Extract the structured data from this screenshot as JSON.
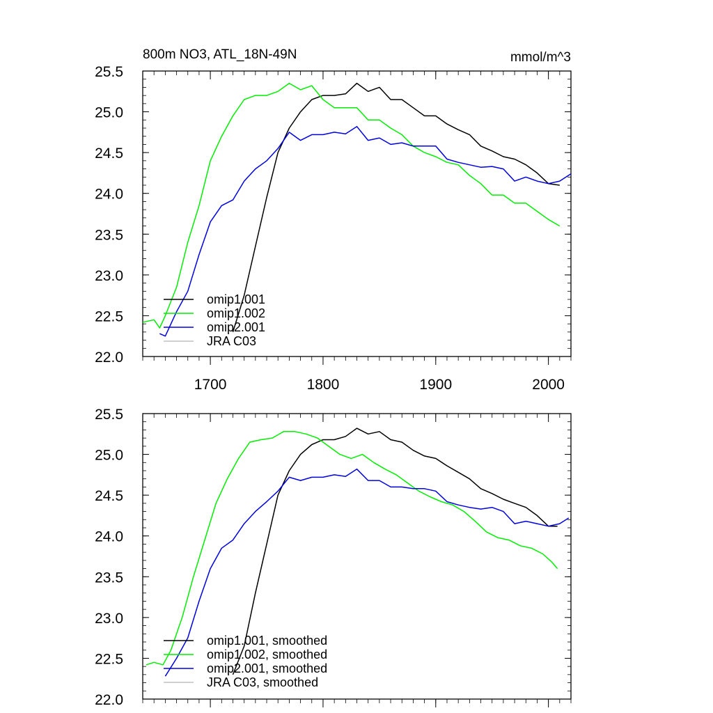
{
  "chart_data": [
    {
      "type": "line",
      "title": "800m NO3, ATL_18N-49N",
      "units_label": "mmol/m^3",
      "xlabel": "",
      "ylabel": "",
      "xlim": [
        1640,
        2020
      ],
      "ylim": [
        22.0,
        25.5
      ],
      "x_ticks": [
        1700,
        1800,
        1900,
        2000
      ],
      "x_tick_labels": [
        "1700",
        "1800",
        "1900",
        "2000"
      ],
      "y_ticks": [
        22.0,
        22.5,
        23.0,
        23.5,
        24.0,
        24.5,
        25.0,
        25.5
      ],
      "y_tick_labels": [
        "22.0",
        "22.5",
        "23.0",
        "23.5",
        "24.0",
        "24.5",
        "25.0",
        "25.5"
      ],
      "grid": false,
      "legend_position": "bottom-left",
      "series": [
        {
          "name": "omip1.001",
          "color": "#000000",
          "points": [
            [
              1720,
              22.3
            ],
            [
              1730,
              22.75
            ],
            [
              1740,
              23.35
            ],
            [
              1750,
              23.95
            ],
            [
              1760,
              24.5
            ],
            [
              1770,
              24.8
            ],
            [
              1780,
              25.0
            ],
            [
              1790,
              25.15
            ],
            [
              1800,
              25.2
            ],
            [
              1810,
              25.2
            ],
            [
              1820,
              25.22
            ],
            [
              1830,
              25.35
            ],
            [
              1840,
              25.25
            ],
            [
              1850,
              25.3
            ],
            [
              1860,
              25.15
            ],
            [
              1870,
              25.15
            ],
            [
              1880,
              25.05
            ],
            [
              1890,
              24.95
            ],
            [
              1900,
              24.95
            ],
            [
              1910,
              24.85
            ],
            [
              1920,
              24.78
            ],
            [
              1930,
              24.72
            ],
            [
              1940,
              24.58
            ],
            [
              1950,
              24.52
            ],
            [
              1960,
              24.45
            ],
            [
              1970,
              24.42
            ],
            [
              1980,
              24.35
            ],
            [
              1990,
              24.25
            ],
            [
              2000,
              24.12
            ],
            [
              2010,
              24.1
            ]
          ]
        },
        {
          "name": "omip1.002",
          "color": "#00ee00",
          "points": [
            [
              1640,
              22.42
            ],
            [
              1650,
              22.45
            ],
            [
              1655,
              22.35
            ],
            [
              1660,
              22.5
            ],
            [
              1670,
              22.85
            ],
            [
              1680,
              23.4
            ],
            [
              1690,
              23.85
            ],
            [
              1700,
              24.4
            ],
            [
              1710,
              24.7
            ],
            [
              1720,
              24.95
            ],
            [
              1730,
              25.15
            ],
            [
              1740,
              25.2
            ],
            [
              1750,
              25.2
            ],
            [
              1760,
              25.25
            ],
            [
              1770,
              25.35
            ],
            [
              1780,
              25.27
            ],
            [
              1790,
              25.32
            ],
            [
              1800,
              25.15
            ],
            [
              1810,
              25.05
            ],
            [
              1820,
              25.05
            ],
            [
              1830,
              25.05
            ],
            [
              1840,
              24.9
            ],
            [
              1850,
              24.9
            ],
            [
              1860,
              24.8
            ],
            [
              1870,
              24.72
            ],
            [
              1880,
              24.58
            ],
            [
              1890,
              24.5
            ],
            [
              1900,
              24.45
            ],
            [
              1910,
              24.38
            ],
            [
              1920,
              24.35
            ],
            [
              1930,
              24.22
            ],
            [
              1940,
              24.12
            ],
            [
              1950,
              23.98
            ],
            [
              1960,
              23.98
            ],
            [
              1970,
              23.88
            ],
            [
              1980,
              23.88
            ],
            [
              1990,
              23.78
            ],
            [
              2000,
              23.68
            ],
            [
              2010,
              23.6
            ]
          ]
        },
        {
          "name": "omip2.001",
          "color": "#0000dd",
          "points": [
            [
              1655,
              22.28
            ],
            [
              1660,
              22.25
            ],
            [
              1670,
              22.55
            ],
            [
              1680,
              22.8
            ],
            [
              1690,
              23.25
            ],
            [
              1700,
              23.65
            ],
            [
              1710,
              23.85
            ],
            [
              1720,
              23.92
            ],
            [
              1730,
              24.15
            ],
            [
              1740,
              24.3
            ],
            [
              1750,
              24.4
            ],
            [
              1760,
              24.55
            ],
            [
              1770,
              24.75
            ],
            [
              1780,
              24.65
            ],
            [
              1790,
              24.72
            ],
            [
              1800,
              24.72
            ],
            [
              1810,
              24.75
            ],
            [
              1820,
              24.73
            ],
            [
              1830,
              24.82
            ],
            [
              1840,
              24.65
            ],
            [
              1850,
              24.68
            ],
            [
              1860,
              24.6
            ],
            [
              1870,
              24.62
            ],
            [
              1880,
              24.58
            ],
            [
              1890,
              24.58
            ],
            [
              1900,
              24.58
            ],
            [
              1910,
              24.42
            ],
            [
              1920,
              24.38
            ],
            [
              1930,
              24.35
            ],
            [
              1940,
              24.32
            ],
            [
              1950,
              24.33
            ],
            [
              1960,
              24.3
            ],
            [
              1970,
              24.15
            ],
            [
              1980,
              24.2
            ],
            [
              1990,
              24.15
            ],
            [
              2000,
              24.12
            ],
            [
              2010,
              24.15
            ],
            [
              2020,
              24.24
            ]
          ]
        },
        {
          "name": "JRA C03",
          "color": "#c0c0c0",
          "points": []
        }
      ]
    },
    {
      "type": "line",
      "title": "",
      "xlabel": "",
      "ylabel": "",
      "xlim": [
        1640,
        2020
      ],
      "ylim": [
        22.0,
        25.5
      ],
      "x_ticks": [
        1700,
        1800,
        1900,
        2000
      ],
      "y_ticks": [
        22.0,
        22.5,
        23.0,
        23.5,
        24.0,
        24.5,
        25.0,
        25.5
      ],
      "y_tick_labels": [
        "22.0",
        "22.5",
        "23.0",
        "23.5",
        "24.0",
        "24.5",
        "25.0",
        "25.5"
      ],
      "grid": false,
      "legend_position": "bottom-left",
      "series": [
        {
          "name": "omip1.001, smoothed",
          "color": "#000000",
          "points": [
            [
              1720,
              22.3
            ],
            [
              1730,
              22.65
            ],
            [
              1740,
              23.3
            ],
            [
              1750,
              23.9
            ],
            [
              1760,
              24.5
            ],
            [
              1770,
              24.8
            ],
            [
              1780,
              25.0
            ],
            [
              1790,
              25.12
            ],
            [
              1800,
              25.18
            ],
            [
              1810,
              25.18
            ],
            [
              1820,
              25.22
            ],
            [
              1830,
              25.32
            ],
            [
              1840,
              25.25
            ],
            [
              1850,
              25.28
            ],
            [
              1860,
              25.18
            ],
            [
              1870,
              25.15
            ],
            [
              1880,
              25.05
            ],
            [
              1890,
              24.98
            ],
            [
              1900,
              24.95
            ],
            [
              1910,
              24.86
            ],
            [
              1920,
              24.78
            ],
            [
              1930,
              24.7
            ],
            [
              1940,
              24.58
            ],
            [
              1950,
              24.52
            ],
            [
              1960,
              24.45
            ],
            [
              1970,
              24.4
            ],
            [
              1980,
              24.35
            ],
            [
              1990,
              24.25
            ],
            [
              2000,
              24.12
            ],
            [
              2008,
              24.12
            ]
          ]
        },
        {
          "name": "omip1.002, smoothed",
          "color": "#00ee00",
          "points": [
            [
              1643,
              22.42
            ],
            [
              1650,
              22.45
            ],
            [
              1658,
              22.42
            ],
            [
              1665,
              22.6
            ],
            [
              1675,
              23.0
            ],
            [
              1685,
              23.5
            ],
            [
              1695,
              23.95
            ],
            [
              1705,
              24.4
            ],
            [
              1715,
              24.7
            ],
            [
              1725,
              24.95
            ],
            [
              1735,
              25.15
            ],
            [
              1745,
              25.18
            ],
            [
              1755,
              25.2
            ],
            [
              1765,
              25.28
            ],
            [
              1775,
              25.28
            ],
            [
              1785,
              25.25
            ],
            [
              1795,
              25.2
            ],
            [
              1805,
              25.1
            ],
            [
              1815,
              25.0
            ],
            [
              1825,
              24.95
            ],
            [
              1835,
              25.0
            ],
            [
              1845,
              24.9
            ],
            [
              1855,
              24.82
            ],
            [
              1865,
              24.75
            ],
            [
              1875,
              24.65
            ],
            [
              1885,
              24.55
            ],
            [
              1895,
              24.48
            ],
            [
              1905,
              24.42
            ],
            [
              1915,
              24.38
            ],
            [
              1925,
              24.3
            ],
            [
              1935,
              24.18
            ],
            [
              1945,
              24.05
            ],
            [
              1955,
              23.98
            ],
            [
              1965,
              23.95
            ],
            [
              1975,
              23.88
            ],
            [
              1985,
              23.85
            ],
            [
              1995,
              23.78
            ],
            [
              2003,
              23.68
            ],
            [
              2008,
              23.6
            ]
          ]
        },
        {
          "name": "omip2.001, smoothed",
          "color": "#0000dd",
          "points": [
            [
              1660,
              22.28
            ],
            [
              1670,
              22.5
            ],
            [
              1680,
              22.75
            ],
            [
              1690,
              23.2
            ],
            [
              1700,
              23.6
            ],
            [
              1710,
              23.85
            ],
            [
              1720,
              23.95
            ],
            [
              1730,
              24.15
            ],
            [
              1740,
              24.3
            ],
            [
              1750,
              24.42
            ],
            [
              1760,
              24.55
            ],
            [
              1770,
              24.72
            ],
            [
              1780,
              24.68
            ],
            [
              1790,
              24.72
            ],
            [
              1800,
              24.72
            ],
            [
              1810,
              24.75
            ],
            [
              1820,
              24.73
            ],
            [
              1830,
              24.82
            ],
            [
              1840,
              24.68
            ],
            [
              1850,
              24.68
            ],
            [
              1860,
              24.6
            ],
            [
              1870,
              24.6
            ],
            [
              1880,
              24.58
            ],
            [
              1890,
              24.58
            ],
            [
              1900,
              24.55
            ],
            [
              1910,
              24.42
            ],
            [
              1920,
              24.38
            ],
            [
              1930,
              24.35
            ],
            [
              1940,
              24.33
            ],
            [
              1950,
              24.35
            ],
            [
              1960,
              24.3
            ],
            [
              1970,
              24.15
            ],
            [
              1980,
              24.18
            ],
            [
              1990,
              24.15
            ],
            [
              2000,
              24.12
            ],
            [
              2010,
              24.15
            ],
            [
              2018,
              24.22
            ]
          ]
        },
        {
          "name": "JRA C03, smoothed",
          "color": "#c0c0c0",
          "points": []
        }
      ]
    }
  ]
}
